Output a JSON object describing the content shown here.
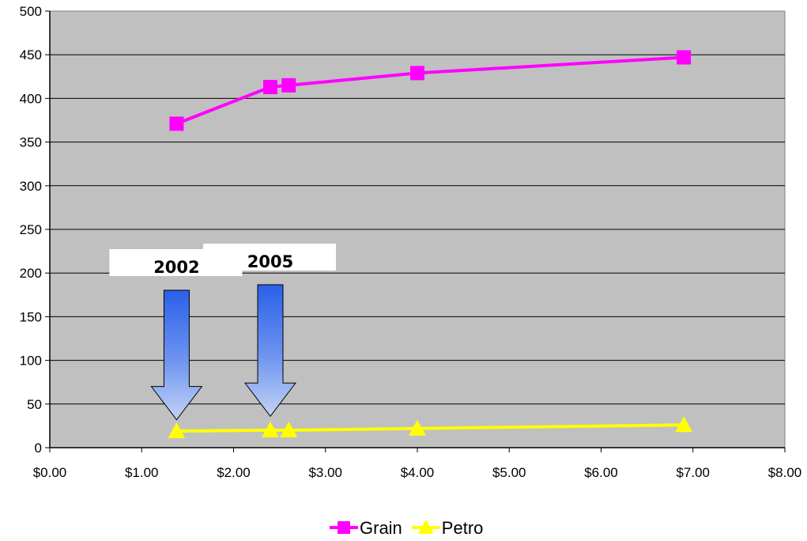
{
  "chart_data": {
    "type": "line",
    "xlim": [
      0,
      8
    ],
    "ylim": [
      0,
      500
    ],
    "x_ticks": [
      0,
      1,
      2,
      3,
      4,
      5,
      6,
      7,
      8
    ],
    "x_tick_labels": [
      "$0.00",
      "$1.00",
      "$2.00",
      "$3.00",
      "$4.00",
      "$5.00",
      "$6.00",
      "$7.00",
      "$8.00"
    ],
    "y_ticks": [
      0,
      50,
      100,
      150,
      200,
      250,
      300,
      350,
      400,
      450,
      500
    ],
    "y_tick_labels": [
      "0",
      "50",
      "100",
      "150",
      "200",
      "250",
      "300",
      "350",
      "400",
      "450",
      "500"
    ],
    "grid": true,
    "plot_background": "#c0c0c0",
    "legend_position": "bottom",
    "series": [
      {
        "name": "Grain",
        "color": "#ff00ff",
        "marker": "square",
        "x": [
          1.38,
          2.4,
          2.6,
          4.0,
          6.9
        ],
        "y": [
          371,
          413,
          415,
          429,
          447
        ]
      },
      {
        "name": "Petro",
        "color": "#ffff00",
        "marker": "triangle",
        "x": [
          1.38,
          2.4,
          2.6,
          4.0,
          6.9
        ],
        "y": [
          19,
          20,
          20,
          22,
          26
        ]
      }
    ],
    "annotations": [
      {
        "text": "2002",
        "arrow_x": 1.38
      },
      {
        "text": "2005",
        "arrow_x": 2.4
      }
    ]
  }
}
